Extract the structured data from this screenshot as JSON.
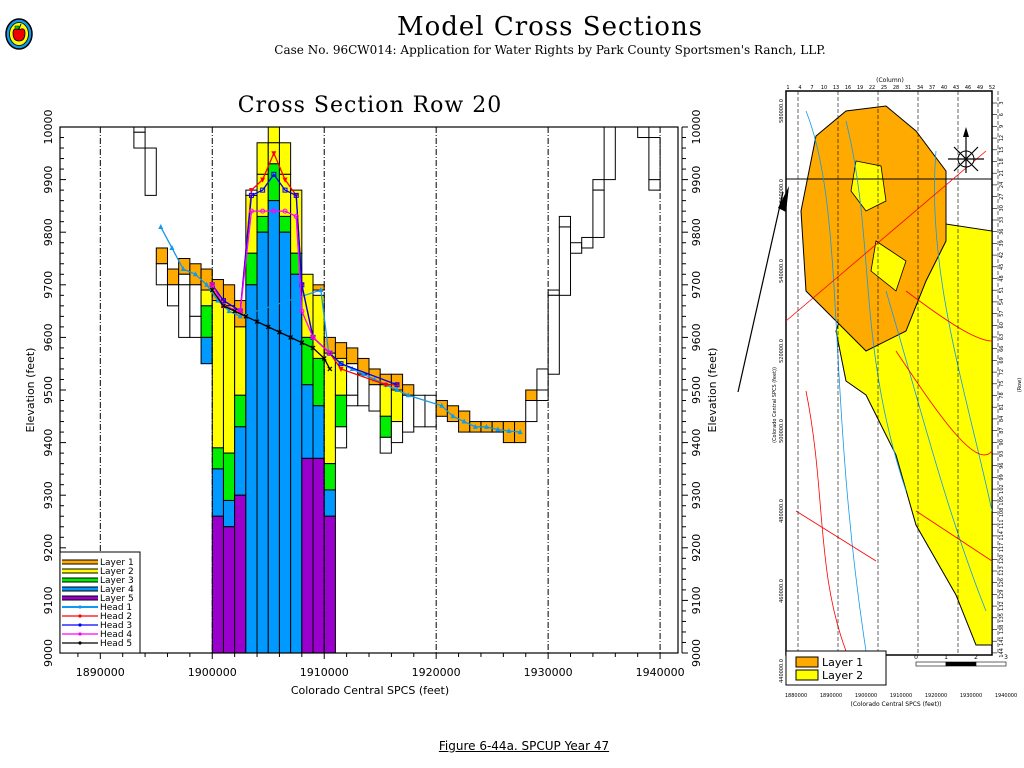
{
  "header": {
    "title": "Model  Cross  Sections",
    "subtitle": "Case No. 96CW014: Application for Water Rights by Park County Sportsmen's Ranch, LLP.",
    "logo_icon": "apple-seal-logo"
  },
  "caption": "Figure 6-44a.  SPCUP Year 47",
  "colors": {
    "layer1": "#ffaa00",
    "layer2": "#ffff00",
    "layer3": "#00ee00",
    "layer4": "#0099ff",
    "layer5": "#9900cc",
    "head1": "#1199ee",
    "head2": "#ff0000",
    "head3": "#0000ff",
    "head4": "#ff00ff",
    "head5": "#000000"
  },
  "chart_data": {
    "type": "area",
    "title": "Cross  Section  Row  20",
    "xlabel": "Colorado Central SPCS (feet)",
    "ylabel": "Elevation  (feet)",
    "ylabel_right": "Elevation  (feet)",
    "xlim": [
      1886400,
      1941600
    ],
    "ylim": [
      9000,
      10000
    ],
    "x_ticks": [
      1890000,
      1900000,
      1910000,
      1920000,
      1930000,
      1940000
    ],
    "x_tick_labels": [
      "1890000",
      "1900000",
      "1910000",
      "1920000",
      "1930000",
      "1940000"
    ],
    "y_ticks": [
      9000,
      9100,
      9200,
      9300,
      9400,
      9500,
      9600,
      9700,
      9800,
      9900,
      10000
    ],
    "y_tick_labels": [
      "9000",
      "9100",
      "9200",
      "9300",
      "9400",
      "9500",
      "9600",
      "9700",
      "9800",
      "9900",
      "10000"
    ],
    "grid": "vertical dashed at major x ticks",
    "legend_position": "bottom-left",
    "legend": [
      {
        "label": "Layer  1",
        "kind": "layer",
        "key": "layer1"
      },
      {
        "label": "Layer  2",
        "kind": "layer",
        "key": "layer2"
      },
      {
        "label": "Layer  3",
        "kind": "layer",
        "key": "layer3"
      },
      {
        "label": "Layer  4",
        "kind": "layer",
        "key": "layer4"
      },
      {
        "label": "Layer  5",
        "kind": "layer",
        "key": "layer5"
      },
      {
        "label": "Head  1",
        "kind": "head",
        "key": "head1",
        "marker": "triangle"
      },
      {
        "label": "Head  2",
        "kind": "head",
        "key": "head2",
        "marker": "triangle-down"
      },
      {
        "label": "Head  3",
        "kind": "head",
        "key": "head3",
        "marker": "square"
      },
      {
        "label": "Head  4",
        "kind": "head",
        "key": "head4",
        "marker": "circle"
      },
      {
        "label": "Head  5",
        "kind": "head",
        "key": "head5",
        "marker": "x"
      }
    ],
    "column_width_ft": 1000,
    "cells": [
      {
        "x": 1893000,
        "segments": [
          [
            9990,
            10000,
            "none"
          ],
          [
            9960,
            9990,
            "none"
          ]
        ]
      },
      {
        "x": 1894000,
        "segments": [
          [
            9870,
            9960,
            "none"
          ]
        ]
      },
      {
        "x": 1895000,
        "segments": [
          [
            9740,
            9770,
            "layer1"
          ],
          [
            9700,
            9740,
            "none"
          ]
        ]
      },
      {
        "x": 1896000,
        "segments": [
          [
            9700,
            9730,
            "layer1"
          ],
          [
            9660,
            9700,
            "none"
          ]
        ]
      },
      {
        "x": 1897000,
        "segments": [
          [
            9720,
            9750,
            "layer1"
          ],
          [
            9700,
            9720,
            "none"
          ],
          [
            9600,
            9700,
            "none"
          ]
        ]
      },
      {
        "x": 1898000,
        "segments": [
          [
            9700,
            9740,
            "layer1"
          ],
          [
            9640,
            9700,
            "none"
          ],
          [
            9600,
            9640,
            "none"
          ]
        ]
      },
      {
        "x": 1899000,
        "segments": [
          [
            9690,
            9730,
            "layer1"
          ],
          [
            9660,
            9690,
            "layer2"
          ],
          [
            9600,
            9660,
            "layer3"
          ],
          [
            9550,
            9600,
            "layer4"
          ]
        ]
      },
      {
        "x": 1900000,
        "segments": [
          [
            9670,
            9710,
            "layer1"
          ],
          [
            9390,
            9670,
            "layer2"
          ],
          [
            9350,
            9390,
            "layer3"
          ],
          [
            9260,
            9350,
            "layer4"
          ],
          [
            9000,
            9260,
            "layer5"
          ]
        ]
      },
      {
        "x": 1901000,
        "segments": [
          [
            9660,
            9700,
            "layer1"
          ],
          [
            9380,
            9660,
            "layer2"
          ],
          [
            9290,
            9380,
            "layer3"
          ],
          [
            9240,
            9290,
            "layer4"
          ],
          [
            9000,
            9240,
            "layer5"
          ]
        ]
      },
      {
        "x": 1902000,
        "segments": [
          [
            9620,
            9670,
            "layer1"
          ],
          [
            9490,
            9620,
            "layer2"
          ],
          [
            9430,
            9490,
            "layer3"
          ],
          [
            9300,
            9430,
            "layer4"
          ],
          [
            9000,
            9300,
            "layer5"
          ]
        ]
      },
      {
        "x": 1903000,
        "segments": [
          [
            9870,
            9880,
            "none"
          ],
          [
            9760,
            9870,
            "layer2"
          ],
          [
            9700,
            9760,
            "layer3"
          ],
          [
            9000,
            9700,
            "layer4"
          ]
        ]
      },
      {
        "x": 1904000,
        "segments": [
          [
            9910,
            9970,
            "layer2"
          ],
          [
            9800,
            9910,
            "layer2"
          ],
          [
            9800,
            9830,
            "layer3"
          ],
          [
            9000,
            9800,
            "layer4"
          ]
        ]
      },
      {
        "x": 1905000,
        "segments": [
          [
            9970,
            10000,
            "layer2"
          ],
          [
            9930,
            9970,
            "layer2"
          ],
          [
            9860,
            9930,
            "layer3"
          ],
          [
            9000,
            9860,
            "layer4"
          ]
        ]
      },
      {
        "x": 1906000,
        "segments": [
          [
            9910,
            9970,
            "layer2"
          ],
          [
            9830,
            9910,
            "layer2"
          ],
          [
            9800,
            9830,
            "layer3"
          ],
          [
            9000,
            9800,
            "layer4"
          ]
        ]
      },
      {
        "x": 1907000,
        "segments": [
          [
            9760,
            9880,
            "layer2"
          ],
          [
            9720,
            9760,
            "layer3"
          ],
          [
            9000,
            9720,
            "layer4"
          ]
        ]
      },
      {
        "x": 1908000,
        "segments": [
          [
            9600,
            9720,
            "layer2"
          ],
          [
            9510,
            9600,
            "layer3"
          ],
          [
            9370,
            9510,
            "layer4"
          ],
          [
            9000,
            9370,
            "layer5"
          ]
        ]
      },
      {
        "x": 1909000,
        "segments": [
          [
            9690,
            9700,
            "layer1"
          ],
          [
            9560,
            9680,
            "layer2"
          ],
          [
            9470,
            9560,
            "layer3"
          ],
          [
            9370,
            9470,
            "layer4"
          ],
          [
            9000,
            9370,
            "layer5"
          ]
        ]
      },
      {
        "x": 1910000,
        "segments": [
          [
            9570,
            9600,
            "layer1"
          ],
          [
            9360,
            9570,
            "layer2"
          ],
          [
            9310,
            9360,
            "layer3"
          ],
          [
            9260,
            9310,
            "layer4"
          ],
          [
            9000,
            9260,
            "layer5"
          ]
        ]
      },
      {
        "x": 1911000,
        "segments": [
          [
            9560,
            9590,
            "layer1"
          ],
          [
            9490,
            9560,
            "layer2"
          ],
          [
            9430,
            9490,
            "layer3"
          ],
          [
            9390,
            9430,
            "none"
          ]
        ]
      },
      {
        "x": 1912000,
        "segments": [
          [
            9550,
            9580,
            "layer1"
          ],
          [
            9490,
            9550,
            "none"
          ],
          [
            9470,
            9490,
            "none"
          ]
        ]
      },
      {
        "x": 1913000,
        "segments": [
          [
            9530,
            9560,
            "layer1"
          ],
          [
            9470,
            9530,
            "none"
          ]
        ]
      },
      {
        "x": 1914000,
        "segments": [
          [
            9510,
            9540,
            "layer1"
          ],
          [
            9460,
            9510,
            "none"
          ]
        ]
      },
      {
        "x": 1915000,
        "segments": [
          [
            9510,
            9530,
            "layer1"
          ],
          [
            9450,
            9510,
            "layer2"
          ],
          [
            9410,
            9450,
            "layer3"
          ],
          [
            9380,
            9410,
            "none"
          ]
        ]
      },
      {
        "x": 1916000,
        "segments": [
          [
            9500,
            9530,
            "layer1"
          ],
          [
            9440,
            9500,
            "layer2"
          ],
          [
            9400,
            9440,
            "none"
          ]
        ]
      },
      {
        "x": 1917000,
        "segments": [
          [
            9490,
            9510,
            "layer1"
          ],
          [
            9420,
            9490,
            "none"
          ]
        ]
      },
      {
        "x": 1918000,
        "segments": [
          [
            9430,
            9490,
            "none"
          ]
        ]
      },
      {
        "x": 1919000,
        "segments": [
          [
            9430,
            9490,
            "none"
          ]
        ]
      },
      {
        "x": 1920000,
        "segments": [
          [
            9450,
            9480,
            "layer1"
          ]
        ]
      },
      {
        "x": 1921000,
        "segments": [
          [
            9440,
            9470,
            "layer1"
          ]
        ]
      },
      {
        "x": 1922000,
        "segments": [
          [
            9420,
            9460,
            "layer1"
          ]
        ]
      },
      {
        "x": 1923000,
        "segments": [
          [
            9420,
            9440,
            "layer1"
          ]
        ]
      },
      {
        "x": 1924000,
        "segments": [
          [
            9420,
            9440,
            "layer1"
          ]
        ]
      },
      {
        "x": 1925000,
        "segments": [
          [
            9420,
            9440,
            "layer1"
          ]
        ]
      },
      {
        "x": 1926000,
        "segments": [
          [
            9400,
            9440,
            "layer1"
          ]
        ]
      },
      {
        "x": 1927000,
        "segments": [
          [
            9400,
            9440,
            "layer1"
          ]
        ]
      },
      {
        "x": 1928000,
        "segments": [
          [
            9480,
            9500,
            "layer1"
          ],
          [
            9440,
            9480,
            "none"
          ]
        ]
      },
      {
        "x": 1929000,
        "segments": [
          [
            9500,
            9540,
            "none"
          ],
          [
            9480,
            9500,
            "none"
          ]
        ]
      },
      {
        "x": 1930000,
        "segments": [
          [
            9680,
            9690,
            "none"
          ],
          [
            9530,
            9680,
            "none"
          ]
        ]
      },
      {
        "x": 1931000,
        "segments": [
          [
            9810,
            9830,
            "none"
          ],
          [
            9680,
            9810,
            "none"
          ]
        ]
      },
      {
        "x": 1932000,
        "segments": [
          [
            9760,
            9780,
            "none"
          ]
        ]
      },
      {
        "x": 1933000,
        "segments": [
          [
            9770,
            9790,
            "none"
          ]
        ]
      },
      {
        "x": 1934000,
        "segments": [
          [
            9880,
            9900,
            "none"
          ],
          [
            9790,
            9880,
            "none"
          ]
        ]
      },
      {
        "x": 1935000,
        "segments": [
          [
            9900,
            10000,
            "none"
          ]
        ]
      },
      {
        "x": 1938000,
        "segments": [
          [
            9980,
            10000,
            "none"
          ]
        ]
      },
      {
        "x": 1939000,
        "segments": [
          [
            9880,
            9900,
            "none"
          ],
          [
            9900,
            9980,
            "none"
          ]
        ]
      }
    ],
    "series": [
      {
        "name": "Head 1",
        "key": "head1",
        "marker": "triangle",
        "x": [
          1895400,
          1896400,
          1897400,
          1898500,
          1899500,
          1900500,
          1901500,
          1902500,
          1909700,
          1910400,
          1911500,
          1912500,
          1913500,
          1914500,
          1915500,
          1916500,
          1917500,
          1920500,
          1921500,
          1922500,
          1923500,
          1924500,
          1925500,
          1926500,
          1927500
        ],
        "y": [
          9810,
          9770,
          9730,
          9720,
          9700,
          9670,
          9650,
          9640,
          9690,
          9570,
          9550,
          9540,
          9530,
          9520,
          9510,
          9500,
          9490,
          9470,
          9450,
          9440,
          9430,
          9430,
          9425,
          9422,
          9420
        ]
      },
      {
        "name": "Head 2",
        "key": "head2",
        "marker": "triangle-down",
        "x": [
          1900000,
          1901000,
          1902500,
          1903500,
          1904500,
          1905500,
          1906500,
          1907500,
          1908000,
          1909000,
          1910500,
          1911500,
          1915500,
          1916500
        ],
        "y": [
          9700,
          9670,
          9650,
          9880,
          9900,
          9950,
          9900,
          9870,
          9700,
          9600,
          9570,
          9540,
          9510,
          9510
        ]
      },
      {
        "name": "Head 3",
        "key": "head3",
        "marker": "square",
        "x": [
          1900000,
          1901000,
          1902500,
          1903500,
          1904500,
          1905500,
          1906500,
          1907500,
          1908000,
          1909000,
          1910500,
          1911500,
          1916500
        ],
        "y": [
          9700,
          9670,
          9650,
          9870,
          9880,
          9910,
          9880,
          9870,
          9700,
          9600,
          9570,
          9550,
          9510
        ]
      },
      {
        "name": "Head 4",
        "key": "head4",
        "marker": "circle",
        "x": [
          1900000,
          1901000,
          1902500,
          1903500,
          1904500,
          1905500,
          1906500,
          1907500,
          1908000,
          1909000,
          1910500
        ],
        "y": [
          9700,
          9660,
          9650,
          9840,
          9840,
          9840,
          9840,
          9830,
          9650,
          9600,
          9570
        ]
      },
      {
        "name": "Head 5",
        "key": "head5",
        "marker": "x",
        "x": [
          1900000,
          1901000,
          1902000,
          1903000,
          1904000,
          1905000,
          1906000,
          1907000,
          1908000,
          1909000,
          1910000,
          1910500
        ],
        "y": [
          9690,
          9660,
          9650,
          9640,
          9630,
          9620,
          9610,
          9600,
          9590,
          9580,
          9560,
          9540
        ]
      }
    ]
  },
  "map": {
    "top_axis_title": "(Column)",
    "top_axis_labels": [
      "1",
      "4",
      "7",
      "10",
      "13",
      "16",
      "19",
      "22",
      "25",
      "28",
      "31",
      "34",
      "37",
      "40",
      "43",
      "46",
      "49",
      "52"
    ],
    "right_axis_title": "(Row)",
    "right_axis_labels": [
      "3",
      "6",
      "9",
      "12",
      "15",
      "18",
      "21",
      "24",
      "27",
      "30",
      "33",
      "36",
      "39",
      "42",
      "45",
      "48",
      "51",
      "54",
      "57",
      "60",
      "63",
      "66",
      "69",
      "72",
      "75",
      "78",
      "81",
      "84",
      "87",
      "90",
      "93",
      "96",
      "99",
      "102",
      "105",
      "108",
      "111",
      "114",
      "117",
      "120",
      "123",
      "126",
      "129",
      "132",
      "135",
      "138",
      "141",
      "144"
    ],
    "left_axis_title": "(Colorado Central SPCS (feet))",
    "left_axis_labels": [
      "580000.0",
      "560000.0",
      "540000.0",
      "520000.0",
      "500000.0",
      "480000.0",
      "460000.0",
      "440000.0"
    ],
    "bottom_axis_title": "(Colorado Central SPCS (feet))",
    "bottom_axis_labels": [
      "1880000",
      "1890000",
      "1900000",
      "1910000",
      "1920000",
      "1930000",
      "1940000"
    ],
    "legend": [
      {
        "label": "Layer  1",
        "key": "layer1"
      },
      {
        "label": "Layer  2",
        "key": "layer2"
      }
    ],
    "compass_icon": "north-arrow-compass-rose",
    "scale_bar_labels": [
      "0",
      "1",
      "2",
      "3"
    ]
  }
}
